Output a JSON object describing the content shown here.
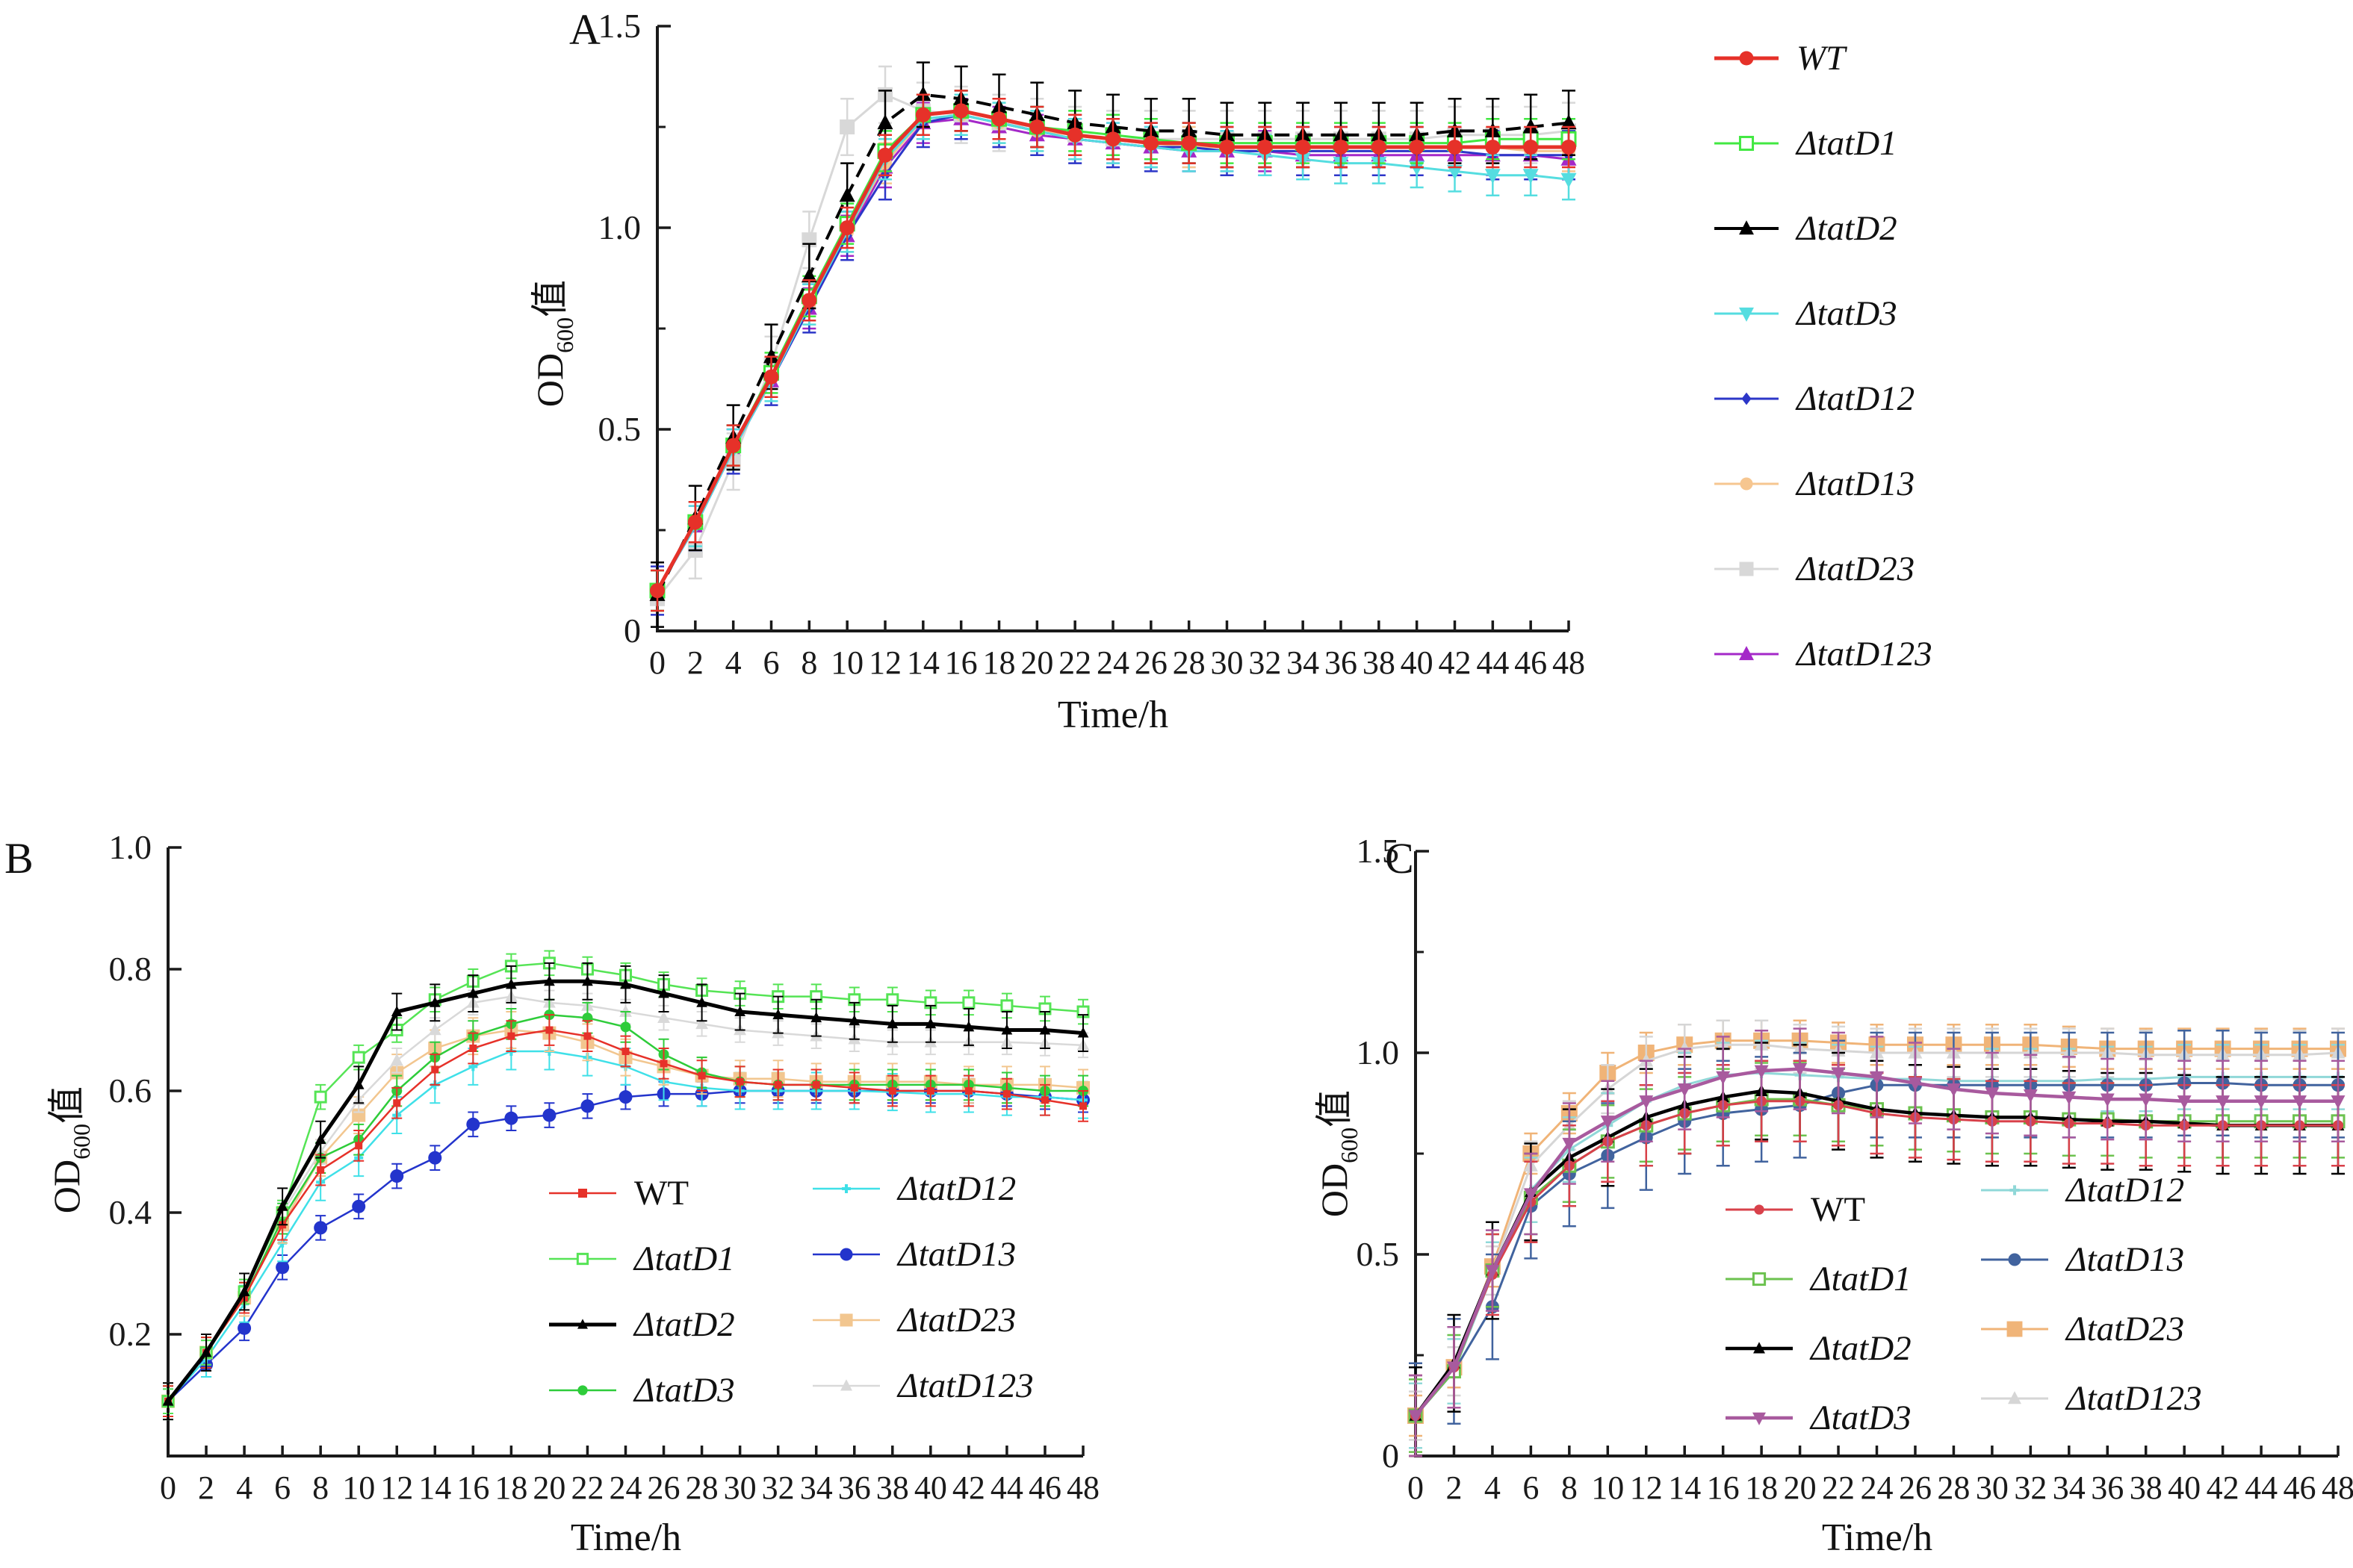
{
  "figure": {
    "panels": {
      "a": {
        "letter": "A"
      },
      "b": {
        "letter": "B"
      },
      "c": {
        "letter": "C"
      }
    },
    "od_label": {
      "prefix": "OD",
      "sub": "600",
      "suffix": "值"
    },
    "time_label": "Time/h"
  },
  "chart_data": [
    {
      "panel": "A",
      "type": "line",
      "title": "",
      "xlabel": "Time/h",
      "ylabel": "OD600值",
      "xlim": [
        0,
        48
      ],
      "ylim": [
        0,
        1.5
      ],
      "grid": false,
      "legend_position": "right-outside",
      "x_ticks": [
        0,
        2,
        4,
        6,
        8,
        10,
        12,
        14,
        16,
        18,
        20,
        22,
        24,
        26,
        28,
        30,
        32,
        34,
        36,
        38,
        40,
        42,
        44,
        46,
        48
      ],
      "y_ticks": [
        {
          "v": 0,
          "label": "0"
        },
        {
          "v": 0.5,
          "label": "0.5"
        },
        {
          "v": 1.0,
          "label": "1.0"
        },
        {
          "v": 1.5,
          "label": "1.5"
        }
      ],
      "y_minor_step": 0.25,
      "x": [
        0,
        2,
        4,
        6,
        8,
        10,
        12,
        14,
        16,
        18,
        20,
        22,
        24,
        26,
        28,
        30,
        32,
        34,
        36,
        38,
        40,
        42,
        44,
        46,
        48
      ],
      "series": [
        {
          "name": "WT",
          "color": "#e63129",
          "marker": "circle",
          "line_style": "solid",
          "err": 0.05,
          "values": [
            0.1,
            0.27,
            0.46,
            0.63,
            0.82,
            1.0,
            1.18,
            1.28,
            1.29,
            1.27,
            1.25,
            1.23,
            1.22,
            1.21,
            1.21,
            1.2,
            1.2,
            1.2,
            1.2,
            1.2,
            1.2,
            1.2,
            1.2,
            1.2,
            1.2
          ]
        },
        {
          "name": "ΔtatD1",
          "color": "#41e841",
          "marker": "square-open",
          "line_style": "solid",
          "err": 0.05,
          "values": [
            0.1,
            0.27,
            0.46,
            0.64,
            0.83,
            1.01,
            1.19,
            1.28,
            1.29,
            1.27,
            1.25,
            1.24,
            1.23,
            1.22,
            1.21,
            1.21,
            1.21,
            1.21,
            1.21,
            1.21,
            1.21,
            1.21,
            1.22,
            1.22,
            1.22
          ]
        },
        {
          "name": "ΔtatD2",
          "color": "#000000",
          "marker": "triangle-up",
          "line_style": "dashed",
          "err": 0.08,
          "values": [
            0.09,
            0.28,
            0.48,
            0.68,
            0.88,
            1.08,
            1.26,
            1.33,
            1.32,
            1.3,
            1.28,
            1.26,
            1.25,
            1.24,
            1.24,
            1.23,
            1.23,
            1.23,
            1.23,
            1.23,
            1.23,
            1.24,
            1.24,
            1.25,
            1.26
          ]
        },
        {
          "name": "ΔtatD3",
          "color": "#55dde0",
          "marker": "triangle-down",
          "line_style": "solid",
          "err": 0.05,
          "values": [
            0.1,
            0.26,
            0.45,
            0.62,
            0.81,
            0.99,
            1.17,
            1.27,
            1.28,
            1.26,
            1.24,
            1.22,
            1.21,
            1.2,
            1.19,
            1.19,
            1.18,
            1.17,
            1.16,
            1.16,
            1.15,
            1.14,
            1.13,
            1.13,
            1.12
          ]
        },
        {
          "name": "ΔtatD12",
          "color": "#2c36c8",
          "marker": "diamond",
          "line_style": "solid",
          "err": 0.06,
          "values": [
            0.1,
            0.26,
            0.45,
            0.62,
            0.8,
            0.98,
            1.13,
            1.26,
            1.28,
            1.26,
            1.24,
            1.22,
            1.21,
            1.2,
            1.2,
            1.19,
            1.19,
            1.19,
            1.19,
            1.19,
            1.19,
            1.19,
            1.18,
            1.18,
            1.18
          ]
        },
        {
          "name": "ΔtatD13",
          "color": "#f6c690",
          "marker": "circle",
          "line_style": "solid",
          "err": 0.05,
          "values": [
            0.1,
            0.27,
            0.46,
            0.63,
            0.81,
            0.99,
            1.16,
            1.27,
            1.28,
            1.26,
            1.24,
            1.23,
            1.22,
            1.21,
            1.2,
            1.2,
            1.2,
            1.2,
            1.2,
            1.2,
            1.2,
            1.2,
            1.2,
            1.19,
            1.19
          ]
        },
        {
          "name": "ΔtatD23",
          "color": "#d8d8d8",
          "marker": "square",
          "line_style": "solid",
          "err": 0.07,
          "values": [
            0.08,
            0.2,
            0.42,
            0.66,
            0.97,
            1.25,
            1.33,
            1.29,
            1.28,
            1.26,
            1.25,
            1.23,
            1.22,
            1.22,
            1.22,
            1.22,
            1.22,
            1.22,
            1.22,
            1.22,
            1.22,
            1.23,
            1.23,
            1.23,
            1.24
          ]
        },
        {
          "name": "ΔtatD123",
          "color": "#a428c8",
          "marker": "triangle-up",
          "line_style": "solid",
          "err": 0.05,
          "values": [
            0.1,
            0.26,
            0.45,
            0.62,
            0.8,
            0.98,
            1.15,
            1.26,
            1.27,
            1.25,
            1.23,
            1.22,
            1.21,
            1.2,
            1.19,
            1.19,
            1.19,
            1.18,
            1.18,
            1.18,
            1.18,
            1.18,
            1.18,
            1.18,
            1.17
          ]
        }
      ]
    },
    {
      "panel": "B",
      "type": "line",
      "title": "",
      "xlabel": "Time/h",
      "ylabel": "OD600值",
      "xlim": [
        0,
        48
      ],
      "ylim": [
        0,
        1.0
      ],
      "grid": false,
      "legend_position": "inside-lower-middle",
      "x_ticks": [
        0,
        2,
        4,
        6,
        8,
        10,
        12,
        14,
        16,
        18,
        20,
        22,
        24,
        26,
        28,
        30,
        32,
        34,
        36,
        38,
        40,
        42,
        44,
        46,
        48
      ],
      "y_ticks": [
        {
          "v": 0.2,
          "label": "0.2"
        },
        {
          "v": 0.4,
          "label": "0.4"
        },
        {
          "v": 0.6,
          "label": "0.6"
        },
        {
          "v": 0.8,
          "label": "0.8"
        },
        {
          "v": 1.0,
          "label": "1.0"
        }
      ],
      "y_minor_step": null,
      "x": [
        0,
        2,
        4,
        6,
        8,
        10,
        12,
        14,
        16,
        18,
        20,
        22,
        24,
        26,
        28,
        30,
        32,
        34,
        36,
        38,
        40,
        42,
        44,
        46,
        48
      ],
      "series": [
        {
          "name": "WT",
          "color": "#e63129",
          "marker": "square",
          "line_style": "solid",
          "err": 0.025,
          "values": [
            0.09,
            0.17,
            0.26,
            0.38,
            0.47,
            0.51,
            0.58,
            0.635,
            0.67,
            0.69,
            0.7,
            0.69,
            0.665,
            0.645,
            0.625,
            0.615,
            0.61,
            0.61,
            0.605,
            0.6,
            0.6,
            0.6,
            0.595,
            0.585,
            0.575
          ]
        },
        {
          "name": "ΔtatD1",
          "color": "#55e455",
          "marker": "square-open",
          "line_style": "solid",
          "err": 0.02,
          "values": [
            0.09,
            0.17,
            0.27,
            0.4,
            0.59,
            0.655,
            0.7,
            0.75,
            0.78,
            0.805,
            0.81,
            0.8,
            0.79,
            0.775,
            0.765,
            0.76,
            0.755,
            0.755,
            0.75,
            0.75,
            0.745,
            0.745,
            0.74,
            0.735,
            0.73
          ]
        },
        {
          "name": "ΔtatD2",
          "color": "#000000",
          "marker": "triangle-up",
          "line_style": "solid",
          "err": 0.03,
          "values": [
            0.09,
            0.17,
            0.27,
            0.41,
            0.52,
            0.61,
            0.73,
            0.745,
            0.76,
            0.775,
            0.78,
            0.78,
            0.775,
            0.76,
            0.745,
            0.73,
            0.725,
            0.72,
            0.715,
            0.71,
            0.71,
            0.705,
            0.7,
            0.7,
            0.695
          ]
        },
        {
          "name": "ΔtatD3",
          "color": "#2ecc3a",
          "marker": "circle",
          "line_style": "solid",
          "err": 0.025,
          "values": [
            0.09,
            0.17,
            0.26,
            0.39,
            0.49,
            0.52,
            0.6,
            0.655,
            0.69,
            0.71,
            0.725,
            0.72,
            0.705,
            0.66,
            0.63,
            0.615,
            0.61,
            0.61,
            0.61,
            0.61,
            0.61,
            0.61,
            0.605,
            0.6,
            0.6
          ]
        },
        {
          "name": "ΔtatD12",
          "color": "#3fe0e8",
          "marker": "plus",
          "line_style": "solid",
          "err": 0.03,
          "values": [
            0.09,
            0.16,
            0.25,
            0.35,
            0.45,
            0.49,
            0.56,
            0.61,
            0.64,
            0.665,
            0.665,
            0.655,
            0.64,
            0.615,
            0.605,
            0.6,
            0.6,
            0.6,
            0.6,
            0.598,
            0.595,
            0.595,
            0.59,
            0.59,
            0.585
          ]
        },
        {
          "name": "ΔtatD13",
          "color": "#2334cc",
          "marker": "circle",
          "line_style": "solid",
          "err": 0.02,
          "values": [
            0.09,
            0.15,
            0.21,
            0.31,
            0.375,
            0.41,
            0.46,
            0.49,
            0.545,
            0.555,
            0.56,
            0.575,
            0.59,
            0.595,
            0.595,
            0.6,
            0.6,
            0.6,
            0.6,
            0.6,
            0.6,
            0.6,
            0.595,
            0.59,
            0.585
          ]
        },
        {
          "name": "ΔtatD23",
          "color": "#f2c68f",
          "marker": "square",
          "line_style": "solid",
          "err": 0.03,
          "values": [
            0.09,
            0.17,
            0.26,
            0.38,
            0.49,
            0.56,
            0.63,
            0.67,
            0.69,
            0.7,
            0.695,
            0.68,
            0.655,
            0.64,
            0.625,
            0.62,
            0.62,
            0.615,
            0.615,
            0.615,
            0.615,
            0.61,
            0.61,
            0.61,
            0.605
          ]
        },
        {
          "name": "ΔtatD123",
          "color": "#d9d9d9",
          "marker": "triangle-up",
          "line_style": "solid",
          "err": 0.02,
          "values": [
            0.09,
            0.17,
            0.27,
            0.4,
            0.5,
            0.585,
            0.65,
            0.7,
            0.745,
            0.755,
            0.745,
            0.74,
            0.73,
            0.72,
            0.71,
            0.7,
            0.695,
            0.69,
            0.685,
            0.68,
            0.68,
            0.68,
            0.68,
            0.678,
            0.675
          ]
        }
      ]
    },
    {
      "panel": "C",
      "type": "line",
      "title": "",
      "xlabel": "Time/h",
      "ylabel": "OD600值",
      "xlim": [
        0,
        48
      ],
      "ylim": [
        0,
        1.5
      ],
      "grid": false,
      "legend_position": "inside-lower-right",
      "x_ticks": [
        0,
        2,
        4,
        6,
        8,
        10,
        12,
        14,
        16,
        18,
        20,
        22,
        24,
        26,
        28,
        30,
        32,
        34,
        36,
        38,
        40,
        42,
        44,
        46,
        48
      ],
      "y_ticks": [
        {
          "v": 0,
          "label": "0"
        },
        {
          "v": 0.5,
          "label": "0.5"
        },
        {
          "v": 1.0,
          "label": "1.0"
        },
        {
          "v": 1.5,
          "label": "1.5"
        }
      ],
      "y_minor_step": 0.25,
      "x": [
        0,
        2,
        4,
        6,
        8,
        10,
        12,
        14,
        16,
        18,
        20,
        22,
        24,
        26,
        28,
        30,
        32,
        34,
        36,
        38,
        40,
        42,
        44,
        46,
        48
      ],
      "series": [
        {
          "name": "WT",
          "color": "#d8414a",
          "marker": "circle",
          "line_style": "solid",
          "err": 0.1,
          "values": [
            0.1,
            0.22,
            0.45,
            0.63,
            0.72,
            0.78,
            0.82,
            0.85,
            0.87,
            0.88,
            0.88,
            0.87,
            0.85,
            0.84,
            0.835,
            0.83,
            0.83,
            0.825,
            0.825,
            0.82,
            0.82,
            0.82,
            0.82,
            0.82,
            0.82
          ]
        },
        {
          "name": "ΔtatD1",
          "color": "#6cc24f",
          "marker": "square-open",
          "line_style": "solid",
          "err": 0.09,
          "values": [
            0.1,
            0.21,
            0.46,
            0.64,
            0.72,
            0.78,
            0.82,
            0.85,
            0.87,
            0.885,
            0.885,
            0.87,
            0.86,
            0.85,
            0.845,
            0.84,
            0.84,
            0.835,
            0.835,
            0.83,
            0.83,
            0.83,
            0.83,
            0.83,
            0.83
          ]
        },
        {
          "name": "ΔtatD2",
          "color": "#000000",
          "marker": "triangle-up",
          "line_style": "solid",
          "err": 0.12,
          "values": [
            0.1,
            0.23,
            0.46,
            0.655,
            0.74,
            0.79,
            0.84,
            0.87,
            0.89,
            0.905,
            0.9,
            0.88,
            0.86,
            0.85,
            0.845,
            0.84,
            0.84,
            0.835,
            0.83,
            0.83,
            0.825,
            0.82,
            0.82,
            0.82,
            0.82
          ]
        },
        {
          "name": "ΔtatD3",
          "color": "#a85a9e",
          "marker": "triangle-down",
          "line_style": "solid",
          "err": 0.1,
          "values": [
            0.1,
            0.22,
            0.46,
            0.65,
            0.775,
            0.83,
            0.88,
            0.91,
            0.94,
            0.955,
            0.96,
            0.95,
            0.94,
            0.925,
            0.91,
            0.9,
            0.895,
            0.89,
            0.885,
            0.885,
            0.88,
            0.88,
            0.88,
            0.88,
            0.88
          ]
        },
        {
          "name": "ΔtatD12",
          "color": "#90d8d8",
          "marker": "plus",
          "line_style": "solid",
          "err": 0.08,
          "values": [
            0.1,
            0.21,
            0.45,
            0.66,
            0.76,
            0.82,
            0.88,
            0.92,
            0.945,
            0.95,
            0.945,
            0.94,
            0.935,
            0.935,
            0.93,
            0.93,
            0.93,
            0.93,
            0.935,
            0.935,
            0.94,
            0.94,
            0.94,
            0.94,
            0.94
          ]
        },
        {
          "name": "ΔtatD13",
          "color": "#41639e",
          "marker": "circle",
          "line_style": "solid",
          "err": 0.13,
          "values": [
            0.1,
            0.21,
            0.37,
            0.62,
            0.7,
            0.745,
            0.79,
            0.83,
            0.85,
            0.86,
            0.87,
            0.9,
            0.92,
            0.92,
            0.92,
            0.92,
            0.92,
            0.92,
            0.92,
            0.92,
            0.925,
            0.925,
            0.92,
            0.92,
            0.92
          ]
        },
        {
          "name": "ΔtatD23",
          "color": "#f0b478",
          "marker": "square",
          "line_style": "solid",
          "err": 0.05,
          "values": [
            0.1,
            0.22,
            0.47,
            0.75,
            0.85,
            0.95,
            1.0,
            1.02,
            1.03,
            1.03,
            1.03,
            1.025,
            1.02,
            1.02,
            1.02,
            1.02,
            1.02,
            1.015,
            1.01,
            1.01,
            1.01,
            1.01,
            1.01,
            1.01,
            1.01
          ]
        },
        {
          "name": "ΔtatD123",
          "color": "#d6d6d6",
          "marker": "triangle-up",
          "line_style": "solid",
          "err": 0.06,
          "values": [
            0.1,
            0.21,
            0.46,
            0.72,
            0.82,
            0.91,
            0.98,
            1.01,
            1.02,
            1.02,
            1.01,
            1.005,
            1.0,
            1.0,
            1.0,
            1.0,
            1.0,
            1.0,
            1.0,
            0.995,
            0.995,
            0.995,
            0.995,
            0.995,
            1.0
          ]
        }
      ]
    }
  ]
}
